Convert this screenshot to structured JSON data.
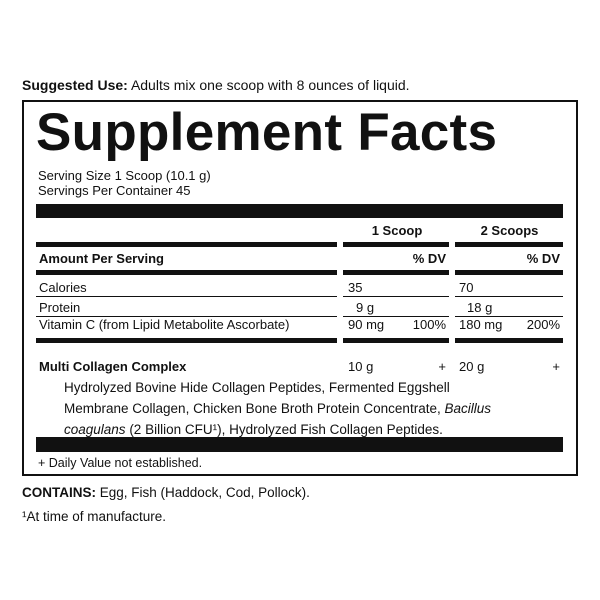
{
  "suggested_use": {
    "label": "Suggested Use:",
    "text": "Adults mix one scoop with 8 ounces of liquid."
  },
  "title": "Supplement Facts",
  "serving_size": "Serving Size 1 Scoop (10.1 g)",
  "servings_per_container": "Servings Per Container 45",
  "columns": [
    "1 Scoop",
    "2 Scoops"
  ],
  "amount_header": "Amount Per Serving",
  "dv_headers": [
    "% DV",
    "% DV"
  ],
  "rows": [
    {
      "name": "Calories",
      "amount_1": "35",
      "amount_2": "70"
    },
    {
      "name": "Protein",
      "amount_1": "9 g",
      "amount_2": "18 g"
    },
    {
      "name": "Vitamin C (from Lipid Metabolite Ascorbate)",
      "amount_1": "90 mg",
      "dv_1": "100%",
      "amount_2": "180 mg",
      "dv_2": "200%"
    }
  ],
  "blend": {
    "name": "Multi Collagen Complex",
    "amount_1": "10 g",
    "dv_1": "+",
    "amount_2": "20 g",
    "dv_2": "+",
    "ingredients": [
      "Hydrolyzed Bovine Hide Collagen Peptides, Fermented Eggshell Membrane Collagen, Chicken Bone Broth Protein Concentrate, ",
      "Bacillus coagulans",
      " (2 Billion CFU¹), Hydrolyzed Fish Collagen Peptides."
    ]
  },
  "footnote": "+ Daily Value not established.",
  "contains": {
    "label": "CONTAINS:",
    "text": "Egg, Fish (Haddock, Cod, Pollock)."
  },
  "manufacture_note": "¹At time of manufacture."
}
